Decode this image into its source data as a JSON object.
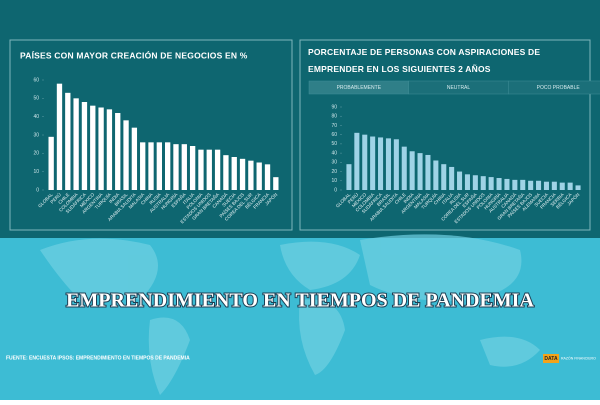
{
  "chart_data": [
    {
      "type": "bar",
      "title": "PAÍSES CON MAYOR CREACIÓN DE NEGOCIOS EN %",
      "color": "#ffffff",
      "categories": [
        "GLOBAL",
        "PERÚ",
        "CHILE",
        "COLOMBIA",
        "SUDÁFRICA",
        "MÉXICO",
        "ARGENTINA",
        "TURQUÍA",
        "INDIA",
        "BRASIL",
        "ARABIA SAUDITA",
        "MALASIA",
        "CHINA",
        "RUSIA",
        "AUSTRALIA",
        "HUNGRÍA",
        "ESPAÑA",
        "ITALIA",
        "POLONIA",
        "ESTADOS UNIDOS",
        "GRAN BRETAÑA",
        "CANADÁ",
        "SUECIA",
        "PAÍSES BAJOS",
        "COREA DEL SUR",
        "BÉLGICA",
        "FRANCIA",
        "JAPÓN"
      ],
      "values": [
        29,
        58,
        53,
        50,
        48,
        46,
        45,
        44,
        42,
        38,
        34,
        26,
        26,
        26,
        26,
        25,
        25,
        24,
        22,
        22,
        22,
        19,
        18,
        17,
        16,
        15,
        14,
        7
      ],
      "ylim": [
        0,
        60
      ],
      "yticks": [
        0,
        10,
        20,
        30,
        40,
        50,
        60
      ]
    },
    {
      "type": "bar",
      "title": "PORCENTAJE DE PERSONAS CON ASPIRACIONES DE EMPRENDER EN LOS SIGUIENTES 2 AÑOS",
      "color": "#9fd3e6",
      "tabs": [
        "PROBABLEMENTE",
        "NEUTRAL",
        "POCO PROBABLE"
      ],
      "categories": [
        "GLOBAL",
        "PERÚ",
        "MÉXICO",
        "COLOMBIA",
        "SUDÁFRICA",
        "BRASIL",
        "ARABIA SAUDITA",
        "CHILE",
        "INDIA",
        "ARGENTINA",
        "MALASIA",
        "TURQUÍA",
        "CHINA",
        "ITALIA",
        "RUSIA",
        "COREA DEL SUR",
        "ESPAÑA",
        "ESTADOS UNIDOS",
        "POLONIA",
        "HUNGRÍA",
        "AUSTRALIA",
        "CANADÁ",
        "GRAN BRETAÑA",
        "PAÍSES BAJOS",
        "ALEMANIA",
        "SUECIA",
        "FRANCIA",
        "SERBIA",
        "BÉLGICA",
        "JAPÓN"
      ],
      "values": [
        28,
        62,
        60,
        58,
        57,
        56,
        55,
        47,
        42,
        40,
        38,
        32,
        28,
        25,
        20,
        17,
        16,
        15,
        14,
        13,
        12,
        11,
        11,
        10,
        10,
        9,
        9,
        8,
        8,
        5
      ],
      "ylim": [
        0,
        90
      ],
      "yticks": [
        0,
        10,
        20,
        30,
        40,
        50,
        60,
        70,
        80,
        90
      ]
    }
  ],
  "banner": "EMPRENDIMIENTO EN TIEMPOS DE PANDEMIA",
  "source": "FUENTE: ENCUESTA IPSOS: EMPRENDIMIENTO EN TIEMPOS DE PANDEMIA",
  "logo": [
    "DATA",
    "RAZÓN FINANCIERO"
  ]
}
